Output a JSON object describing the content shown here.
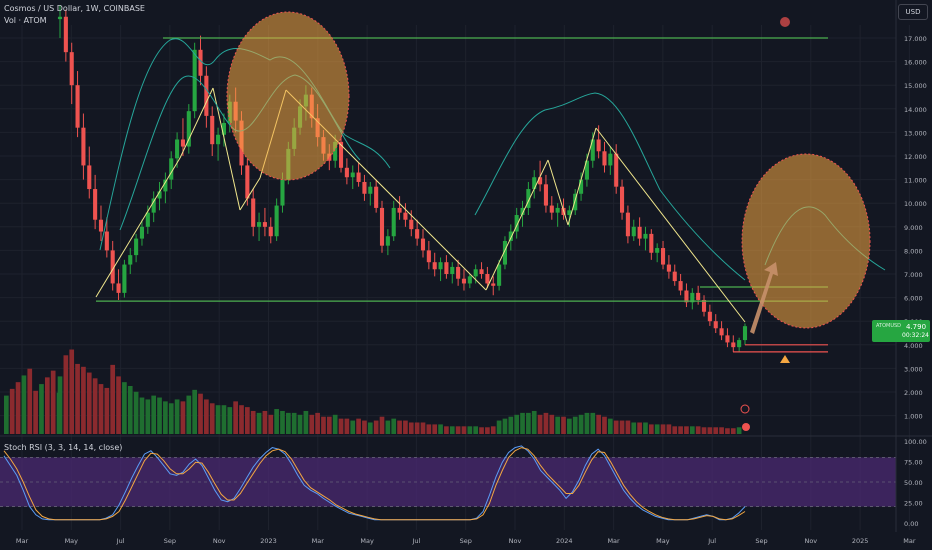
{
  "header": {
    "title": "Cosmos / US Dollar, 1W, COINBASE",
    "volume_label": "Vol · ATOM",
    "currency": "USD",
    "symbol_tag": "ATOMUSD",
    "current_price": "4.790",
    "countdown": "00:32:24"
  },
  "rsi_panel": {
    "label": "Stoch RSI (3, 3, 14, 14, close)"
  },
  "colors": {
    "background": "#131722",
    "up": "#26a641",
    "down": "#ef5350",
    "support": "#4caf50",
    "trend": "#f0e68c",
    "envelope": "#26a69a",
    "circle": "#f5a742",
    "arrow": "#c8906a",
    "rsi_k": "#5b9cf6",
    "rsi_d": "#f2a642",
    "rsi_band": "#4b2a72"
  },
  "chart_data": [
    {
      "type": "candlestick",
      "title": "Cosmos / US Dollar, 1W, COINBASE",
      "ylim": [
        0,
        18
      ],
      "y_ticks": [
        "1.000",
        "2.000",
        "3.000",
        "4.000",
        "5.000",
        "6.000",
        "7.000",
        "8.000",
        "9.000",
        "10.000",
        "11.000",
        "12.000",
        "13.000",
        "14.000",
        "15.000",
        "16.000",
        "17.000"
      ],
      "x_ticks": [
        "Mar",
        "May",
        "Jul",
        "Sep",
        "Nov",
        "2023",
        "Mar",
        "May",
        "Jul",
        "Sep",
        "Nov",
        "2024",
        "Mar",
        "May",
        "Jul",
        "Sep",
        "Nov",
        "2025",
        "Mar"
      ],
      "ohlc": [
        [
          17.8,
          18.4,
          17.0,
          17.9
        ],
        [
          17.9,
          18.2,
          16.0,
          16.4
        ],
        [
          16.4,
          16.8,
          14.2,
          15.0
        ],
        [
          15.0,
          15.6,
          12.8,
          13.2
        ],
        [
          13.2,
          13.8,
          11.0,
          11.6
        ],
        [
          11.6,
          12.4,
          10.2,
          10.6
        ],
        [
          10.6,
          11.2,
          8.9,
          9.3
        ],
        [
          9.3,
          9.9,
          8.4,
          8.8
        ],
        [
          8.8,
          9.4,
          7.7,
          8.0
        ],
        [
          8.0,
          8.4,
          6.3,
          6.6
        ],
        [
          6.6,
          7.2,
          5.9,
          6.2
        ],
        [
          6.2,
          7.6,
          6.0,
          7.4
        ],
        [
          7.4,
          8.1,
          7.0,
          7.8
        ],
        [
          7.8,
          8.7,
          7.5,
          8.5
        ],
        [
          8.5,
          9.3,
          8.2,
          9.0
        ],
        [
          9.0,
          9.9,
          8.7,
          9.6
        ],
        [
          9.6,
          10.5,
          9.2,
          10.2
        ],
        [
          10.2,
          10.9,
          9.7,
          10.5
        ],
        [
          10.5,
          11.3,
          10.0,
          11.0
        ],
        [
          11.0,
          12.2,
          10.6,
          11.9
        ],
        [
          11.9,
          13.0,
          11.5,
          12.7
        ],
        [
          12.7,
          13.6,
          12.0,
          12.4
        ],
        [
          12.4,
          14.2,
          12.1,
          13.9
        ],
        [
          13.9,
          16.8,
          13.6,
          16.5
        ],
        [
          16.5,
          17.1,
          15.0,
          15.4
        ],
        [
          15.4,
          15.8,
          13.2,
          13.7
        ],
        [
          13.7,
          14.1,
          12.0,
          12.5
        ],
        [
          12.5,
          13.2,
          11.8,
          12.9
        ],
        [
          12.9,
          13.8,
          12.4,
          13.4
        ],
        [
          13.4,
          14.6,
          13.0,
          14.3
        ],
        [
          14.3,
          14.9,
          13.0,
          13.5
        ],
        [
          13.5,
          13.9,
          11.2,
          11.6
        ],
        [
          11.6,
          11.9,
          9.9,
          10.2
        ],
        [
          10.2,
          10.6,
          8.6,
          9.0
        ],
        [
          9.0,
          9.6,
          8.4,
          9.2
        ],
        [
          9.2,
          9.8,
          8.6,
          9.0
        ],
        [
          9.0,
          9.4,
          8.3,
          8.6
        ],
        [
          8.6,
          10.2,
          8.4,
          9.9
        ],
        [
          9.9,
          11.3,
          9.6,
          11.0
        ],
        [
          11.0,
          12.6,
          10.8,
          12.3
        ],
        [
          12.3,
          13.6,
          12.0,
          13.2
        ],
        [
          13.2,
          14.4,
          12.9,
          14.1
        ],
        [
          14.1,
          15.0,
          13.5,
          14.6
        ],
        [
          14.6,
          14.9,
          13.2,
          13.6
        ],
        [
          13.6,
          14.2,
          12.4,
          12.8
        ],
        [
          12.8,
          13.1,
          11.8,
          12.1
        ],
        [
          12.1,
          12.5,
          11.4,
          11.8
        ],
        [
          11.8,
          12.9,
          11.5,
          12.6
        ],
        [
          12.6,
          12.8,
          11.3,
          11.5
        ],
        [
          11.5,
          11.9,
          10.8,
          11.1
        ],
        [
          11.1,
          11.6,
          10.6,
          11.3
        ],
        [
          11.3,
          11.7,
          10.7,
          10.9
        ],
        [
          10.9,
          11.2,
          10.1,
          10.4
        ],
        [
          10.4,
          10.9,
          9.9,
          10.7
        ],
        [
          10.7,
          11.0,
          9.6,
          9.8
        ],
        [
          9.8,
          10.1,
          7.9,
          8.2
        ],
        [
          8.2,
          8.9,
          7.8,
          8.6
        ],
        [
          8.6,
          10.1,
          8.4,
          9.8
        ],
        [
          9.8,
          10.3,
          9.3,
          9.6
        ],
        [
          9.6,
          10.0,
          9.0,
          9.3
        ],
        [
          9.3,
          9.7,
          8.6,
          8.9
        ],
        [
          8.9,
          9.3,
          8.2,
          8.5
        ],
        [
          8.5,
          8.9,
          7.7,
          8.0
        ],
        [
          8.0,
          8.4,
          7.2,
          7.5
        ],
        [
          7.5,
          7.9,
          6.9,
          7.2
        ],
        [
          7.2,
          7.7,
          6.7,
          7.5
        ],
        [
          7.5,
          7.8,
          6.8,
          7.0
        ],
        [
          7.0,
          7.5,
          6.6,
          7.3
        ],
        [
          7.3,
          7.6,
          6.5,
          6.8
        ],
        [
          6.8,
          7.2,
          6.3,
          6.6
        ],
        [
          6.6,
          7.0,
          6.4,
          6.9
        ],
        [
          6.9,
          7.4,
          6.6,
          7.2
        ],
        [
          7.2,
          7.5,
          6.8,
          7.0
        ],
        [
          7.0,
          7.3,
          6.4,
          6.6
        ],
        [
          6.6,
          6.9,
          6.1,
          6.5
        ],
        [
          6.5,
          7.6,
          6.3,
          7.4
        ],
        [
          7.4,
          8.6,
          7.2,
          8.4
        ],
        [
          8.4,
          9.1,
          8.0,
          8.8
        ],
        [
          8.8,
          9.8,
          8.5,
          9.5
        ],
        [
          9.5,
          10.1,
          9.0,
          9.8
        ],
        [
          9.8,
          10.9,
          9.5,
          10.6
        ],
        [
          10.6,
          11.4,
          10.2,
          11.1
        ],
        [
          11.1,
          11.8,
          10.5,
          10.8
        ],
        [
          10.8,
          11.2,
          9.6,
          9.9
        ],
        [
          9.9,
          10.3,
          9.3,
          9.6
        ],
        [
          9.6,
          10.0,
          9.0,
          9.8
        ],
        [
          9.8,
          10.2,
          9.3,
          9.5
        ],
        [
          9.5,
          9.9,
          9.0,
          9.7
        ],
        [
          9.7,
          10.6,
          9.5,
          10.4
        ],
        [
          10.4,
          11.3,
          10.1,
          11.0
        ],
        [
          11.0,
          12.1,
          10.7,
          11.8
        ],
        [
          11.8,
          13.0,
          11.5,
          12.7
        ],
        [
          12.7,
          13.3,
          11.9,
          12.2
        ],
        [
          12.2,
          12.6,
          11.3,
          11.6
        ],
        [
          11.6,
          12.4,
          11.2,
          12.1
        ],
        [
          12.1,
          12.5,
          10.4,
          10.7
        ],
        [
          10.7,
          11.0,
          9.3,
          9.6
        ],
        [
          9.6,
          9.9,
          8.3,
          8.6
        ],
        [
          8.6,
          9.3,
          8.4,
          9.0
        ],
        [
          9.0,
          9.4,
          8.2,
          8.5
        ],
        [
          8.5,
          9.0,
          8.0,
          8.7
        ],
        [
          8.7,
          8.9,
          7.6,
          7.9
        ],
        [
          7.9,
          8.3,
          7.5,
          8.1
        ],
        [
          8.1,
          8.4,
          7.2,
          7.4
        ],
        [
          7.4,
          7.8,
          6.8,
          7.1
        ],
        [
          7.1,
          7.4,
          6.5,
          6.7
        ],
        [
          6.7,
          7.0,
          6.1,
          6.3
        ],
        [
          6.3,
          6.6,
          5.6,
          5.8
        ],
        [
          5.8,
          6.4,
          5.5,
          6.2
        ],
        [
          6.2,
          6.5,
          5.7,
          5.9
        ],
        [
          5.9,
          6.1,
          5.2,
          5.4
        ],
        [
          5.4,
          5.7,
          4.8,
          5.0
        ],
        [
          5.0,
          5.3,
          4.5,
          4.7
        ],
        [
          4.7,
          5.0,
          4.2,
          4.4
        ],
        [
          4.4,
          4.7,
          3.9,
          4.1
        ],
        [
          4.1,
          4.4,
          3.7,
          3.9
        ],
        [
          3.9,
          4.3,
          3.7,
          4.2
        ],
        [
          4.2,
          4.9,
          4.0,
          4.79
        ]
      ],
      "volume_ylim": [
        0,
        100
      ],
      "volume": [
        60,
        82,
        88,
        73,
        70,
        64,
        58,
        52,
        48,
        72,
        60,
        54,
        50,
        44,
        38,
        36,
        40,
        38,
        34,
        32,
        36,
        34,
        40,
        46,
        42,
        36,
        32,
        30,
        30,
        28,
        34,
        30,
        28,
        24,
        22,
        24,
        20,
        26,
        24,
        22,
        22,
        20,
        24,
        20,
        22,
        18,
        18,
        20,
        16,
        16,
        14,
        16,
        14,
        12,
        14,
        18,
        14,
        16,
        14,
        14,
        12,
        12,
        12,
        10,
        10,
        10,
        8,
        8,
        8,
        8,
        8,
        8,
        7,
        7,
        8,
        14,
        16,
        18,
        20,
        22,
        22,
        24,
        20,
        22,
        20,
        18,
        18,
        16,
        18,
        20,
        22,
        22,
        20,
        18,
        16,
        14,
        14,
        14,
        12,
        12,
        12,
        10,
        10,
        10,
        10,
        8,
        8,
        8,
        8,
        8,
        7,
        7,
        7,
        7,
        6,
        6,
        7
      ]
    },
    {
      "type": "line",
      "title": "Stoch RSI (3, 3, 14, 14, close)",
      "ylim": [
        0,
        100
      ],
      "y_ticks": [
        "0.00",
        "25.00",
        "50.00",
        "75.00",
        "100.00"
      ],
      "series": [
        {
          "values": [
            82,
            70,
            58,
            40,
            20,
            10,
            5,
            4,
            4,
            4,
            4,
            4,
            4,
            4,
            4,
            4,
            6,
            10,
            22,
            38,
            55,
            70,
            84,
            88,
            80,
            70,
            60,
            58,
            62,
            72,
            78,
            70,
            55,
            40,
            28,
            26,
            30,
            42,
            55,
            68,
            78,
            86,
            92,
            90,
            84,
            72,
            58,
            46,
            40,
            36,
            30,
            25,
            20,
            16,
            12,
            10,
            8,
            6,
            4,
            4,
            4,
            4,
            4,
            4,
            4,
            4,
            4,
            4,
            4,
            4,
            4,
            4,
            4,
            4,
            6,
            14,
            34,
            56,
            74,
            86,
            92,
            94,
            88,
            78,
            64,
            56,
            48,
            40,
            30,
            38,
            52,
            70,
            84,
            90,
            82,
            68,
            54,
            40,
            30,
            22,
            16,
            12,
            8,
            6,
            4,
            4,
            4,
            4,
            6,
            8,
            10,
            8,
            4,
            4,
            6,
            12,
            20
          ]
        },
        {
          "values": [
            88,
            78,
            66,
            50,
            32,
            16,
            8,
            5,
            4,
            4,
            4,
            4,
            4,
            4,
            4,
            4,
            5,
            8,
            14,
            28,
            44,
            60,
            76,
            85,
            84,
            76,
            66,
            60,
            60,
            66,
            74,
            73,
            62,
            48,
            35,
            28,
            28,
            36,
            48,
            60,
            72,
            82,
            88,
            90,
            87,
            78,
            65,
            52,
            43,
            38,
            33,
            28,
            22,
            18,
            14,
            11,
            9,
            7,
            5,
            4,
            4,
            4,
            4,
            4,
            4,
            4,
            4,
            4,
            4,
            4,
            4,
            4,
            4,
            4,
            5,
            10,
            24,
            46,
            64,
            80,
            88,
            92,
            90,
            82,
            70,
            60,
            52,
            44,
            36,
            36,
            46,
            62,
            77,
            87,
            86,
            74,
            60,
            46,
            35,
            26,
            19,
            14,
            10,
            7,
            5,
            4,
            4,
            4,
            5,
            7,
            9,
            8,
            5,
            4,
            5,
            9,
            14
          ]
        }
      ],
      "bands": [
        20,
        80
      ]
    }
  ],
  "annotations": {
    "resistance_level": 17.0,
    "support_level": 5.85,
    "support_level_2": 6.45,
    "low_levels": [
      4.0,
      3.7
    ]
  }
}
